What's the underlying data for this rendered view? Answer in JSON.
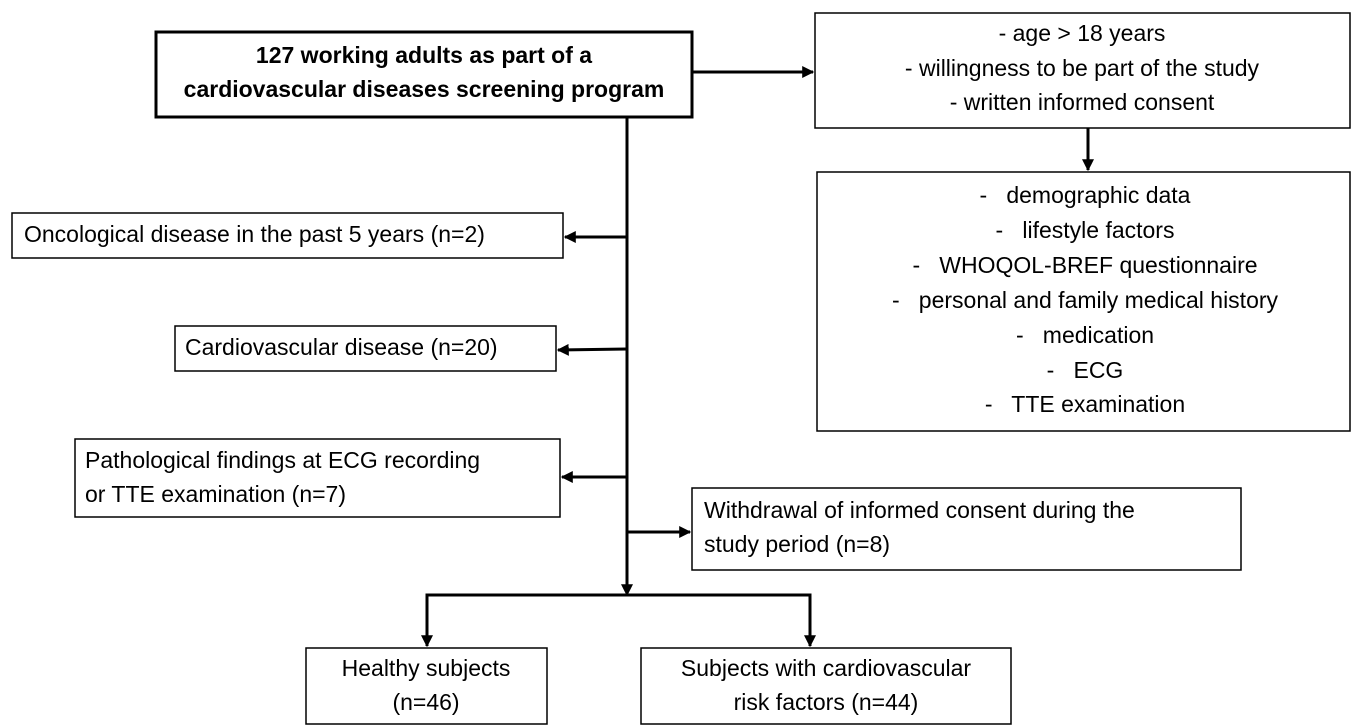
{
  "nodes": [
    {
      "lines": [
        "127 working adults as part of a",
        "cardiovascular diseases screening program"
      ]
    },
    {
      "lines": [
        "- age > 18 years",
        "- willingness to be part of the study",
        "- written informed consent"
      ]
    },
    {
      "lines": [
        "-   demographic data",
        "-   lifestyle factors",
        "-   WHOQOL-BREF questionnaire",
        "-   personal and family medical history",
        "-   medication",
        "-   ECG",
        "-   TTE examination"
      ]
    },
    {
      "lines": [
        "Oncological disease in the past 5 years (n=2)"
      ]
    },
    {
      "lines": [
        "Cardiovascular disease (n=20)"
      ]
    },
    {
      "lines": [
        "Pathological findings at ECG recording",
        "or TTE examination (n=7)"
      ]
    },
    {
      "lines": [
        "Withdrawal of informed consent during the",
        "study period (n=8)"
      ]
    },
    {
      "lines": [
        "Healthy subjects",
        "(n=46)"
      ]
    },
    {
      "lines": [
        "Subjects with cardiovascular",
        "risk factors (n=44)"
      ]
    }
  ]
}
